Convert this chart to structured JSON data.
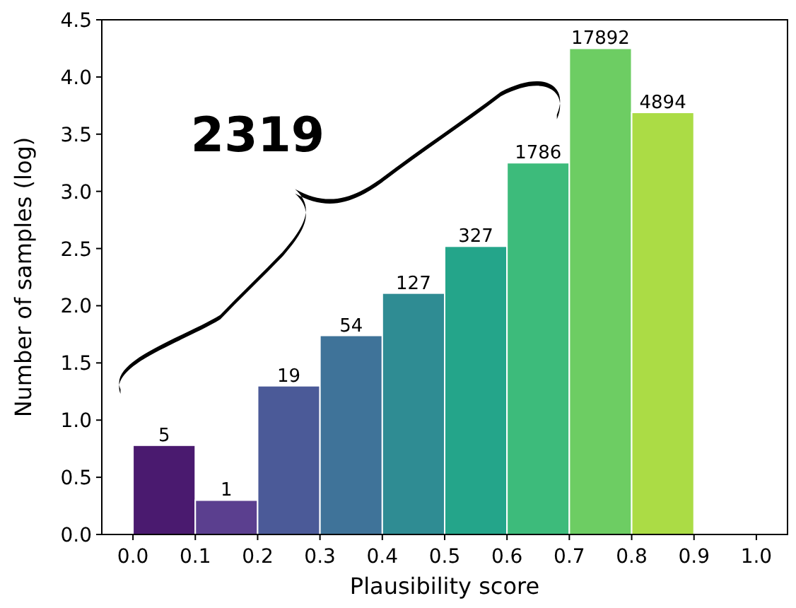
{
  "chart_data": {
    "type": "histogram",
    "xlabel": "Plausibility score",
    "ylabel": "Number of samples (log)",
    "bins": [
      0,
      0.1,
      0.2,
      0.3,
      0.4,
      0.5,
      0.6,
      0.7,
      0.8,
      0.9
    ],
    "values": [
      0.78,
      0.3,
      1.3,
      1.74,
      2.11,
      2.52,
      3.25,
      4.25,
      3.69
    ],
    "colors": [
      "#4a1a6f",
      "#5b3f8f",
      "#4b5a98",
      "#3f7399",
      "#2f8c93",
      "#24a58a",
      "#3dbb7b",
      "#6dcd63",
      "#abdc45"
    ],
    "xlim": [
      -0.05,
      1.05
    ],
    "xticks": [
      {
        "value": 0,
        "label": "0.0"
      },
      {
        "value": 0.1,
        "label": "0.1"
      },
      {
        "value": 0.2,
        "label": "0.2"
      },
      {
        "value": 0.3,
        "label": "0.3"
      },
      {
        "value": 0.4,
        "label": "0.4"
      },
      {
        "value": 0.5,
        "label": "0.5"
      },
      {
        "value": 0.6,
        "label": "0.6"
      },
      {
        "value": 0.7,
        "label": "0.7"
      },
      {
        "value": 0.8,
        "label": "0.8"
      },
      {
        "value": 0.9,
        "label": "0.9"
      },
      {
        "value": 1,
        "label": "1.0"
      }
    ],
    "ylim": [
      0,
      4.5
    ],
    "yticks": [
      {
        "value": 0,
        "label": "0.0"
      },
      {
        "value": 0.5,
        "label": "0.5"
      },
      {
        "value": 1,
        "label": "1.0"
      },
      {
        "value": 1.5,
        "label": "1.5"
      },
      {
        "value": 2,
        "label": "2.0"
      },
      {
        "value": 2.5,
        "label": "2.5"
      },
      {
        "value": 3,
        "label": "3.0"
      },
      {
        "value": 3.5,
        "label": "3.5"
      },
      {
        "value": 4,
        "label": "4.0"
      },
      {
        "value": 4.5,
        "label": "4.5"
      }
    ],
    "annotations": [
      "2319",
      {
        "text": "5",
        "x": 0.05,
        "y": 0.78
      },
      {
        "text": "1",
        "x": 0.15,
        "y": 0.3
      },
      {
        "text": "19",
        "x": 0.25,
        "y": 1.3
      },
      {
        "text": "54",
        "x": 0.35,
        "y": 1.74
      },
      {
        "text": "127",
        "x": 0.45,
        "y": 2.11
      },
      {
        "text": "327",
        "x": 0.55,
        "y": 2.52
      },
      {
        "text": "1786",
        "x": 0.65,
        "y": 3.25
      },
      {
        "text": "17892",
        "x": 0.75,
        "y": 4.25
      },
      {
        "text": "4894",
        "x": 0.85,
        "y": 3.69
      }
    ]
  }
}
